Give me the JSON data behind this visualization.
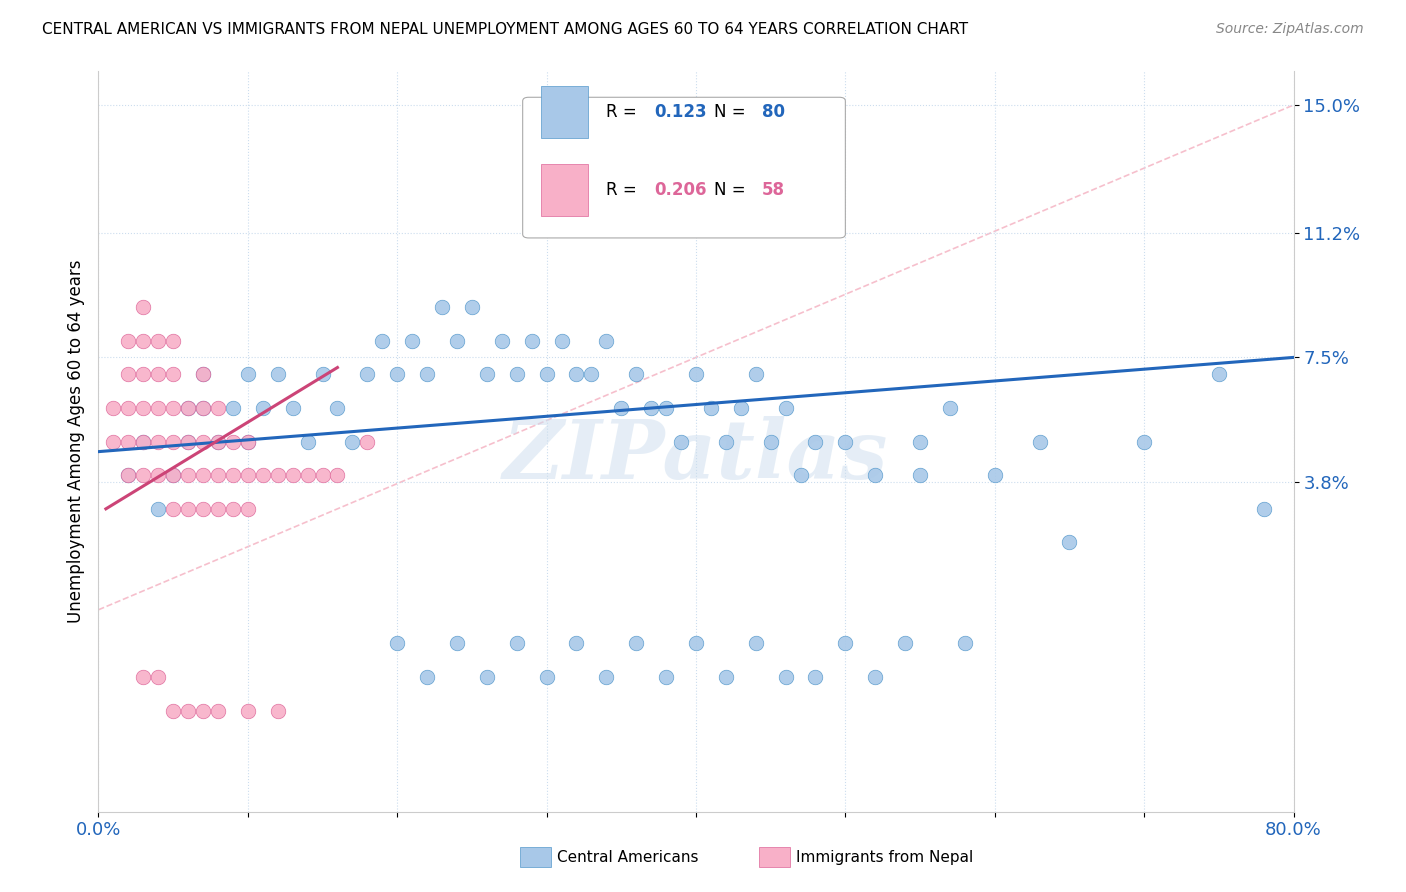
{
  "title": "CENTRAL AMERICAN VS IMMIGRANTS FROM NEPAL UNEMPLOYMENT AMONG AGES 60 TO 64 YEARS CORRELATION CHART",
  "source": "Source: ZipAtlas.com",
  "ylabel": "Unemployment Among Ages 60 to 64 years",
  "xmin": 0.0,
  "xmax": 0.8,
  "ymin": -0.06,
  "ymax": 0.16,
  "ytick_positions": [
    0.038,
    0.075,
    0.112,
    0.15
  ],
  "ytick_labels": [
    "3.8%",
    "7.5%",
    "11.2%",
    "15.0%"
  ],
  "R_blue": 0.123,
  "N_blue": 80,
  "R_pink": 0.206,
  "N_pink": 58,
  "blue_color": "#a8c8e8",
  "pink_color": "#f8b0c8",
  "blue_edge_color": "#5599cc",
  "pink_edge_color": "#dd6699",
  "blue_line_color": "#2266bb",
  "pink_line_color": "#cc4477",
  "diag_color": "#f4b0c0",
  "legend_label_blue": "Central Americans",
  "legend_label_pink": "Immigrants from Nepal",
  "watermark": "ZIPatlas",
  "background_color": "#ffffff",
  "blue_scatter_x": [
    0.02,
    0.03,
    0.04,
    0.05,
    0.06,
    0.06,
    0.07,
    0.07,
    0.08,
    0.09,
    0.1,
    0.1,
    0.11,
    0.12,
    0.13,
    0.14,
    0.15,
    0.16,
    0.17,
    0.18,
    0.19,
    0.2,
    0.21,
    0.22,
    0.23,
    0.24,
    0.25,
    0.26,
    0.27,
    0.28,
    0.29,
    0.3,
    0.31,
    0.32,
    0.33,
    0.34,
    0.35,
    0.36,
    0.37,
    0.38,
    0.39,
    0.4,
    0.41,
    0.42,
    0.43,
    0.44,
    0.45,
    0.46,
    0.47,
    0.48,
    0.2,
    0.22,
    0.24,
    0.26,
    0.28,
    0.3,
    0.32,
    0.34,
    0.36,
    0.38,
    0.4,
    0.42,
    0.44,
    0.46,
    0.48,
    0.5,
    0.52,
    0.54,
    0.55,
    0.58,
    0.5,
    0.52,
    0.55,
    0.57,
    0.6,
    0.63,
    0.65,
    0.7,
    0.75,
    0.78
  ],
  "blue_scatter_y": [
    0.04,
    0.05,
    0.03,
    0.04,
    0.06,
    0.05,
    0.07,
    0.06,
    0.05,
    0.06,
    0.05,
    0.07,
    0.06,
    0.07,
    0.06,
    0.05,
    0.07,
    0.06,
    0.05,
    0.07,
    0.08,
    0.07,
    0.08,
    0.07,
    0.09,
    0.08,
    0.09,
    0.07,
    0.08,
    0.07,
    0.08,
    0.07,
    0.08,
    0.07,
    0.07,
    0.08,
    0.06,
    0.07,
    0.06,
    0.06,
    0.05,
    0.07,
    0.06,
    0.05,
    0.06,
    0.07,
    0.05,
    0.06,
    0.04,
    0.05,
    -0.01,
    -0.02,
    -0.01,
    -0.02,
    -0.01,
    -0.02,
    -0.01,
    -0.02,
    -0.01,
    -0.02,
    -0.01,
    -0.02,
    -0.01,
    -0.02,
    -0.02,
    -0.01,
    -0.02,
    -0.01,
    0.04,
    -0.01,
    0.05,
    0.04,
    0.05,
    0.06,
    0.04,
    0.05,
    0.02,
    0.05,
    0.07,
    0.03
  ],
  "pink_scatter_x": [
    0.01,
    0.01,
    0.02,
    0.02,
    0.02,
    0.02,
    0.02,
    0.03,
    0.03,
    0.03,
    0.03,
    0.03,
    0.03,
    0.04,
    0.04,
    0.04,
    0.04,
    0.04,
    0.05,
    0.05,
    0.05,
    0.05,
    0.05,
    0.05,
    0.06,
    0.06,
    0.06,
    0.06,
    0.07,
    0.07,
    0.07,
    0.07,
    0.07,
    0.08,
    0.08,
    0.08,
    0.08,
    0.09,
    0.09,
    0.09,
    0.1,
    0.1,
    0.1,
    0.11,
    0.12,
    0.13,
    0.14,
    0.15,
    0.16,
    0.18,
    0.03,
    0.04,
    0.05,
    0.06,
    0.07,
    0.08,
    0.1,
    0.12
  ],
  "pink_scatter_y": [
    0.05,
    0.06,
    0.04,
    0.05,
    0.06,
    0.07,
    0.08,
    0.04,
    0.05,
    0.06,
    0.07,
    0.08,
    0.09,
    0.04,
    0.05,
    0.06,
    0.07,
    0.08,
    0.03,
    0.04,
    0.05,
    0.06,
    0.07,
    0.08,
    0.03,
    0.04,
    0.05,
    0.06,
    0.03,
    0.04,
    0.05,
    0.06,
    0.07,
    0.03,
    0.04,
    0.05,
    0.06,
    0.03,
    0.04,
    0.05,
    0.03,
    0.04,
    0.05,
    0.04,
    0.04,
    0.04,
    0.04,
    0.04,
    0.04,
    0.05,
    -0.02,
    -0.02,
    -0.03,
    -0.03,
    -0.03,
    -0.03,
    -0.03,
    -0.03
  ],
  "blue_trend_x": [
    0.0,
    0.8
  ],
  "blue_trend_y": [
    0.047,
    0.075
  ],
  "pink_trend_x": [
    0.005,
    0.16
  ],
  "pink_trend_y": [
    0.03,
    0.072
  ]
}
